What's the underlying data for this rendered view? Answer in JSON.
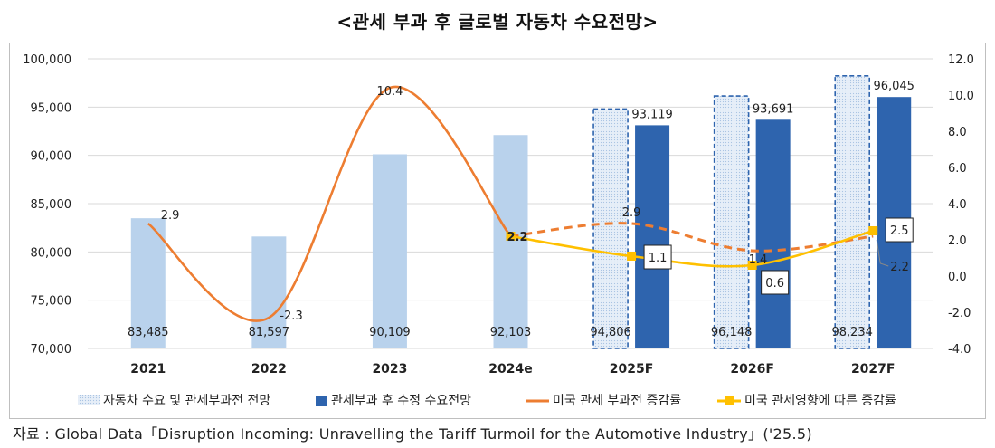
{
  "title": "<관세 부과 후 글로벌 자동차 수요전망>",
  "source": "자료 : Global Data「Disruption Incoming: Unravelling the Tariff Turmoil for the Automotive Industry」('25.5)",
  "colors": {
    "pre_bar": "#b9d2ec",
    "post_bar": "#2e64ae",
    "orange": "#ed7d31",
    "yellow": "#ffc000",
    "grid": "#d9d9d9",
    "dash_border": "#2e64ae"
  },
  "chart_data": {
    "type": "bar",
    "title": "<관세 부과 후 글로벌 자동차 수요전망>",
    "categories": [
      "2021",
      "2022",
      "2023",
      "2024e",
      "2025F",
      "2026F",
      "2027F"
    ],
    "y_left": {
      "min": 70000,
      "max": 100000,
      "step": 5000,
      "ticks": [
        "70,000",
        "75,000",
        "80,000",
        "85,000",
        "90,000",
        "95,000",
        "100,000"
      ]
    },
    "y_right": {
      "min": -4,
      "max": 12,
      "step": 2,
      "ticks": [
        "-4.0",
        "-2.0",
        "0.0",
        "2.0",
        "4.0",
        "6.0",
        "8.0",
        "10.0",
        "12.0"
      ]
    },
    "series": [
      {
        "name": "자동차 수요 및 관세부과전 전망",
        "type": "bar",
        "axis": "left",
        "values": [
          83485,
          81597,
          90109,
          92103,
          94806,
          96148,
          98234
        ],
        "labels": [
          "83,485",
          "81,597",
          "90,109",
          "92,103",
          "94,806",
          "96,148",
          "98,234"
        ],
        "forecast_from_index": 4
      },
      {
        "name": "관세부과 후 수정 수요전망",
        "type": "bar",
        "axis": "left",
        "values": [
          null,
          null,
          null,
          null,
          93119,
          93691,
          96045
        ],
        "labels": [
          "",
          "",
          "",
          "",
          "93,119",
          "93,691",
          "96,045"
        ]
      },
      {
        "name": "미국 관세 부과전 증감률",
        "type": "line",
        "axis": "right",
        "values": [
          2.9,
          -2.3,
          10.4,
          2.2,
          2.9,
          1.4,
          2.2
        ],
        "labels": [
          "2.9",
          "-2.3",
          "10.4",
          "2.2",
          "2.9",
          "1.4",
          "2.2"
        ],
        "dashed_from_index": 3
      },
      {
        "name": "미국 관세영향에 따른 증감률",
        "type": "line",
        "axis": "right",
        "values": [
          null,
          null,
          null,
          2.2,
          1.1,
          0.6,
          2.5
        ],
        "labels": [
          "",
          "",
          "",
          "2.2",
          "1.1",
          "0.6",
          "2.5"
        ]
      }
    ]
  }
}
